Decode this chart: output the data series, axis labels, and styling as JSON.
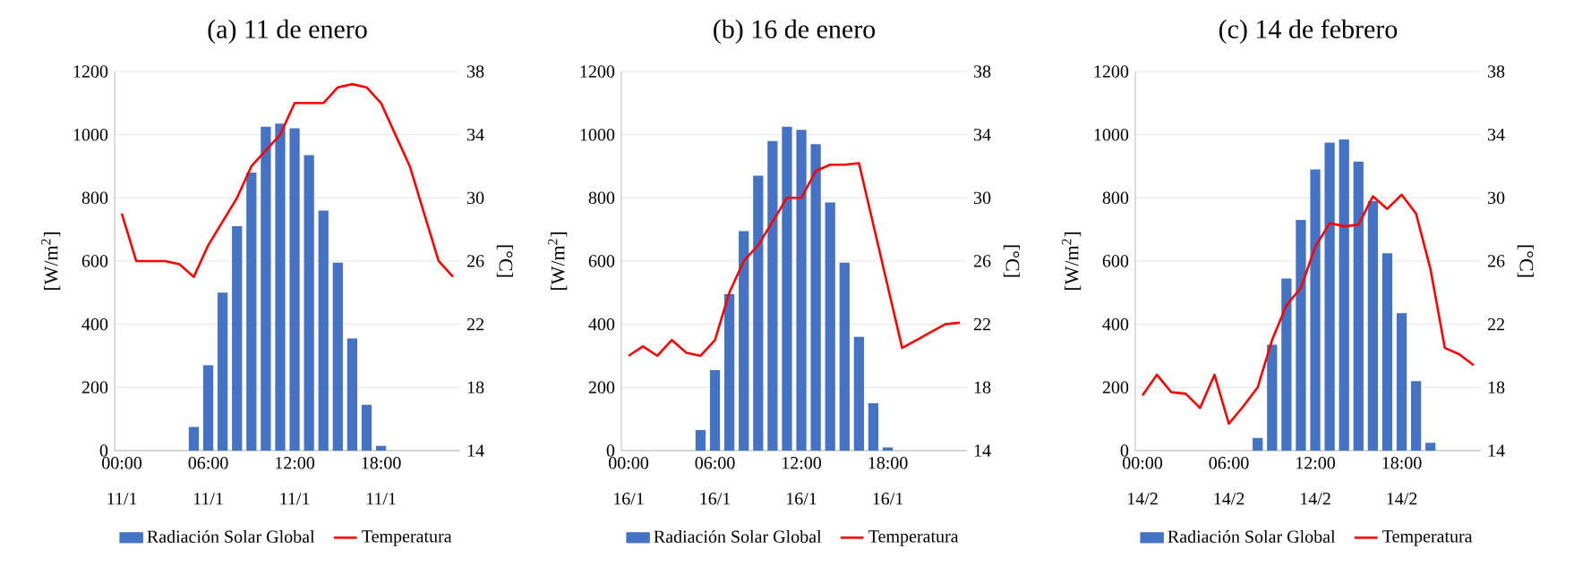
{
  "chart_data": [
    {
      "type": "bar",
      "title": "(a)  11 de enero",
      "ylabel": "[W/m$^{2}$]",
      "y2label": "[°C]",
      "categories": [
        "00:00 11/1",
        null,
        null,
        null,
        null,
        null,
        "06:00 11/1",
        null,
        null,
        null,
        null,
        null,
        "12:00 11/1",
        null,
        null,
        null,
        null,
        null,
        "18:00 11/1",
        null,
        null,
        null,
        null,
        null
      ],
      "series": [
        {
          "name": "Radiación Solar Global",
          "color": "#4472c4",
          "values": [
            0,
            0,
            0,
            0,
            0,
            75,
            270,
            500,
            710,
            880,
            1025,
            1035,
            1020,
            935,
            760,
            595,
            355,
            145,
            15,
            0,
            0,
            0,
            0,
            0
          ]
        },
        {
          "name": "Temperatura",
          "type": "line",
          "axis": "y2",
          "color": "#ff0000",
          "values": [
            29,
            26,
            26,
            26,
            25.8,
            25,
            27,
            28.5,
            30,
            32,
            33,
            34,
            36,
            36,
            36,
            37,
            37.2,
            37,
            36,
            34,
            32,
            29,
            26,
            25
          ]
        }
      ],
      "ylim": [
        0,
        1200
      ],
      "yticks": [
        0,
        200,
        400,
        600,
        800,
        1000,
        1200
      ],
      "y2lim": [
        14,
        38
      ],
      "y2ticks": [
        14,
        18,
        22,
        26,
        30,
        34,
        38
      ],
      "grid": "y",
      "legend": "bottom"
    },
    {
      "type": "bar",
      "title": "(b)  16 de enero",
      "ylabel": "[W/m$^{2}$]",
      "y2label": "[°C]",
      "categories": [
        "00:00 16/1",
        null,
        null,
        null,
        null,
        null,
        "06:00 16/1",
        null,
        null,
        null,
        null,
        null,
        "12:00 16/1",
        null,
        null,
        null,
        null,
        null,
        "18:00 16/1",
        null,
        null,
        null,
        null,
        null
      ],
      "series": [
        {
          "name": "Radiación Solar Global",
          "color": "#4472c4",
          "values": [
            0,
            0,
            0,
            0,
            0,
            65,
            255,
            495,
            695,
            870,
            980,
            1025,
            1015,
            970,
            785,
            595,
            360,
            150,
            10,
            0,
            0,
            0,
            0,
            0
          ]
        },
        {
          "name": "Temperatura",
          "type": "line",
          "axis": "y2",
          "color": "#ff0000",
          "values": [
            20,
            20.6,
            20,
            21,
            20.2,
            20,
            21,
            24,
            26,
            27,
            28.5,
            30,
            30,
            31.7,
            32.1,
            32.1,
            32.2,
            28.3,
            24.4,
            20.5,
            21,
            21.5,
            22,
            22.1
          ]
        }
      ],
      "ylim": [
        0,
        1200
      ],
      "yticks": [
        0,
        200,
        400,
        600,
        800,
        1000,
        1200
      ],
      "y2lim": [
        14,
        38
      ],
      "y2ticks": [
        14,
        18,
        22,
        26,
        30,
        34,
        38
      ],
      "grid": "y",
      "legend": "bottom"
    },
    {
      "type": "bar",
      "title": "(c)  14 de febrero",
      "ylabel": "[W/m$^{2}$]",
      "y2label": "[°C]",
      "categories": [
        "00:00 14/2",
        null,
        null,
        null,
        null,
        null,
        "06:00 14/2",
        null,
        null,
        null,
        null,
        null,
        "12:00 14/2",
        null,
        null,
        null,
        null,
        null,
        "18:00 14/2",
        null,
        null,
        null,
        null,
        null
      ],
      "series": [
        {
          "name": "Radiación Solar Global",
          "color": "#4472c4",
          "values": [
            0,
            0,
            0,
            0,
            0,
            0,
            0,
            0,
            40,
            335,
            545,
            730,
            890,
            975,
            985,
            915,
            790,
            625,
            435,
            220,
            25,
            0,
            0,
            0
          ]
        },
        {
          "name": "Temperatura",
          "type": "line",
          "axis": "y2",
          "color": "#ff0000",
          "values": [
            17.5,
            18.8,
            17.7,
            17.6,
            16.7,
            18.8,
            15.7,
            16.8,
            18,
            21,
            23.2,
            24.3,
            26.9,
            28.4,
            28.2,
            28.3,
            30.1,
            29.3,
            30.2,
            29,
            25.5,
            20.5,
            20.1,
            19.4
          ]
        }
      ],
      "ylim": [
        0,
        1200
      ],
      "yticks": [
        0,
        200,
        400,
        600,
        800,
        1000,
        1200
      ],
      "y2lim": [
        14,
        38
      ],
      "y2ticks": [
        14,
        18,
        22,
        26,
        30,
        34,
        38
      ],
      "grid": "y",
      "legend": "bottom"
    }
  ]
}
